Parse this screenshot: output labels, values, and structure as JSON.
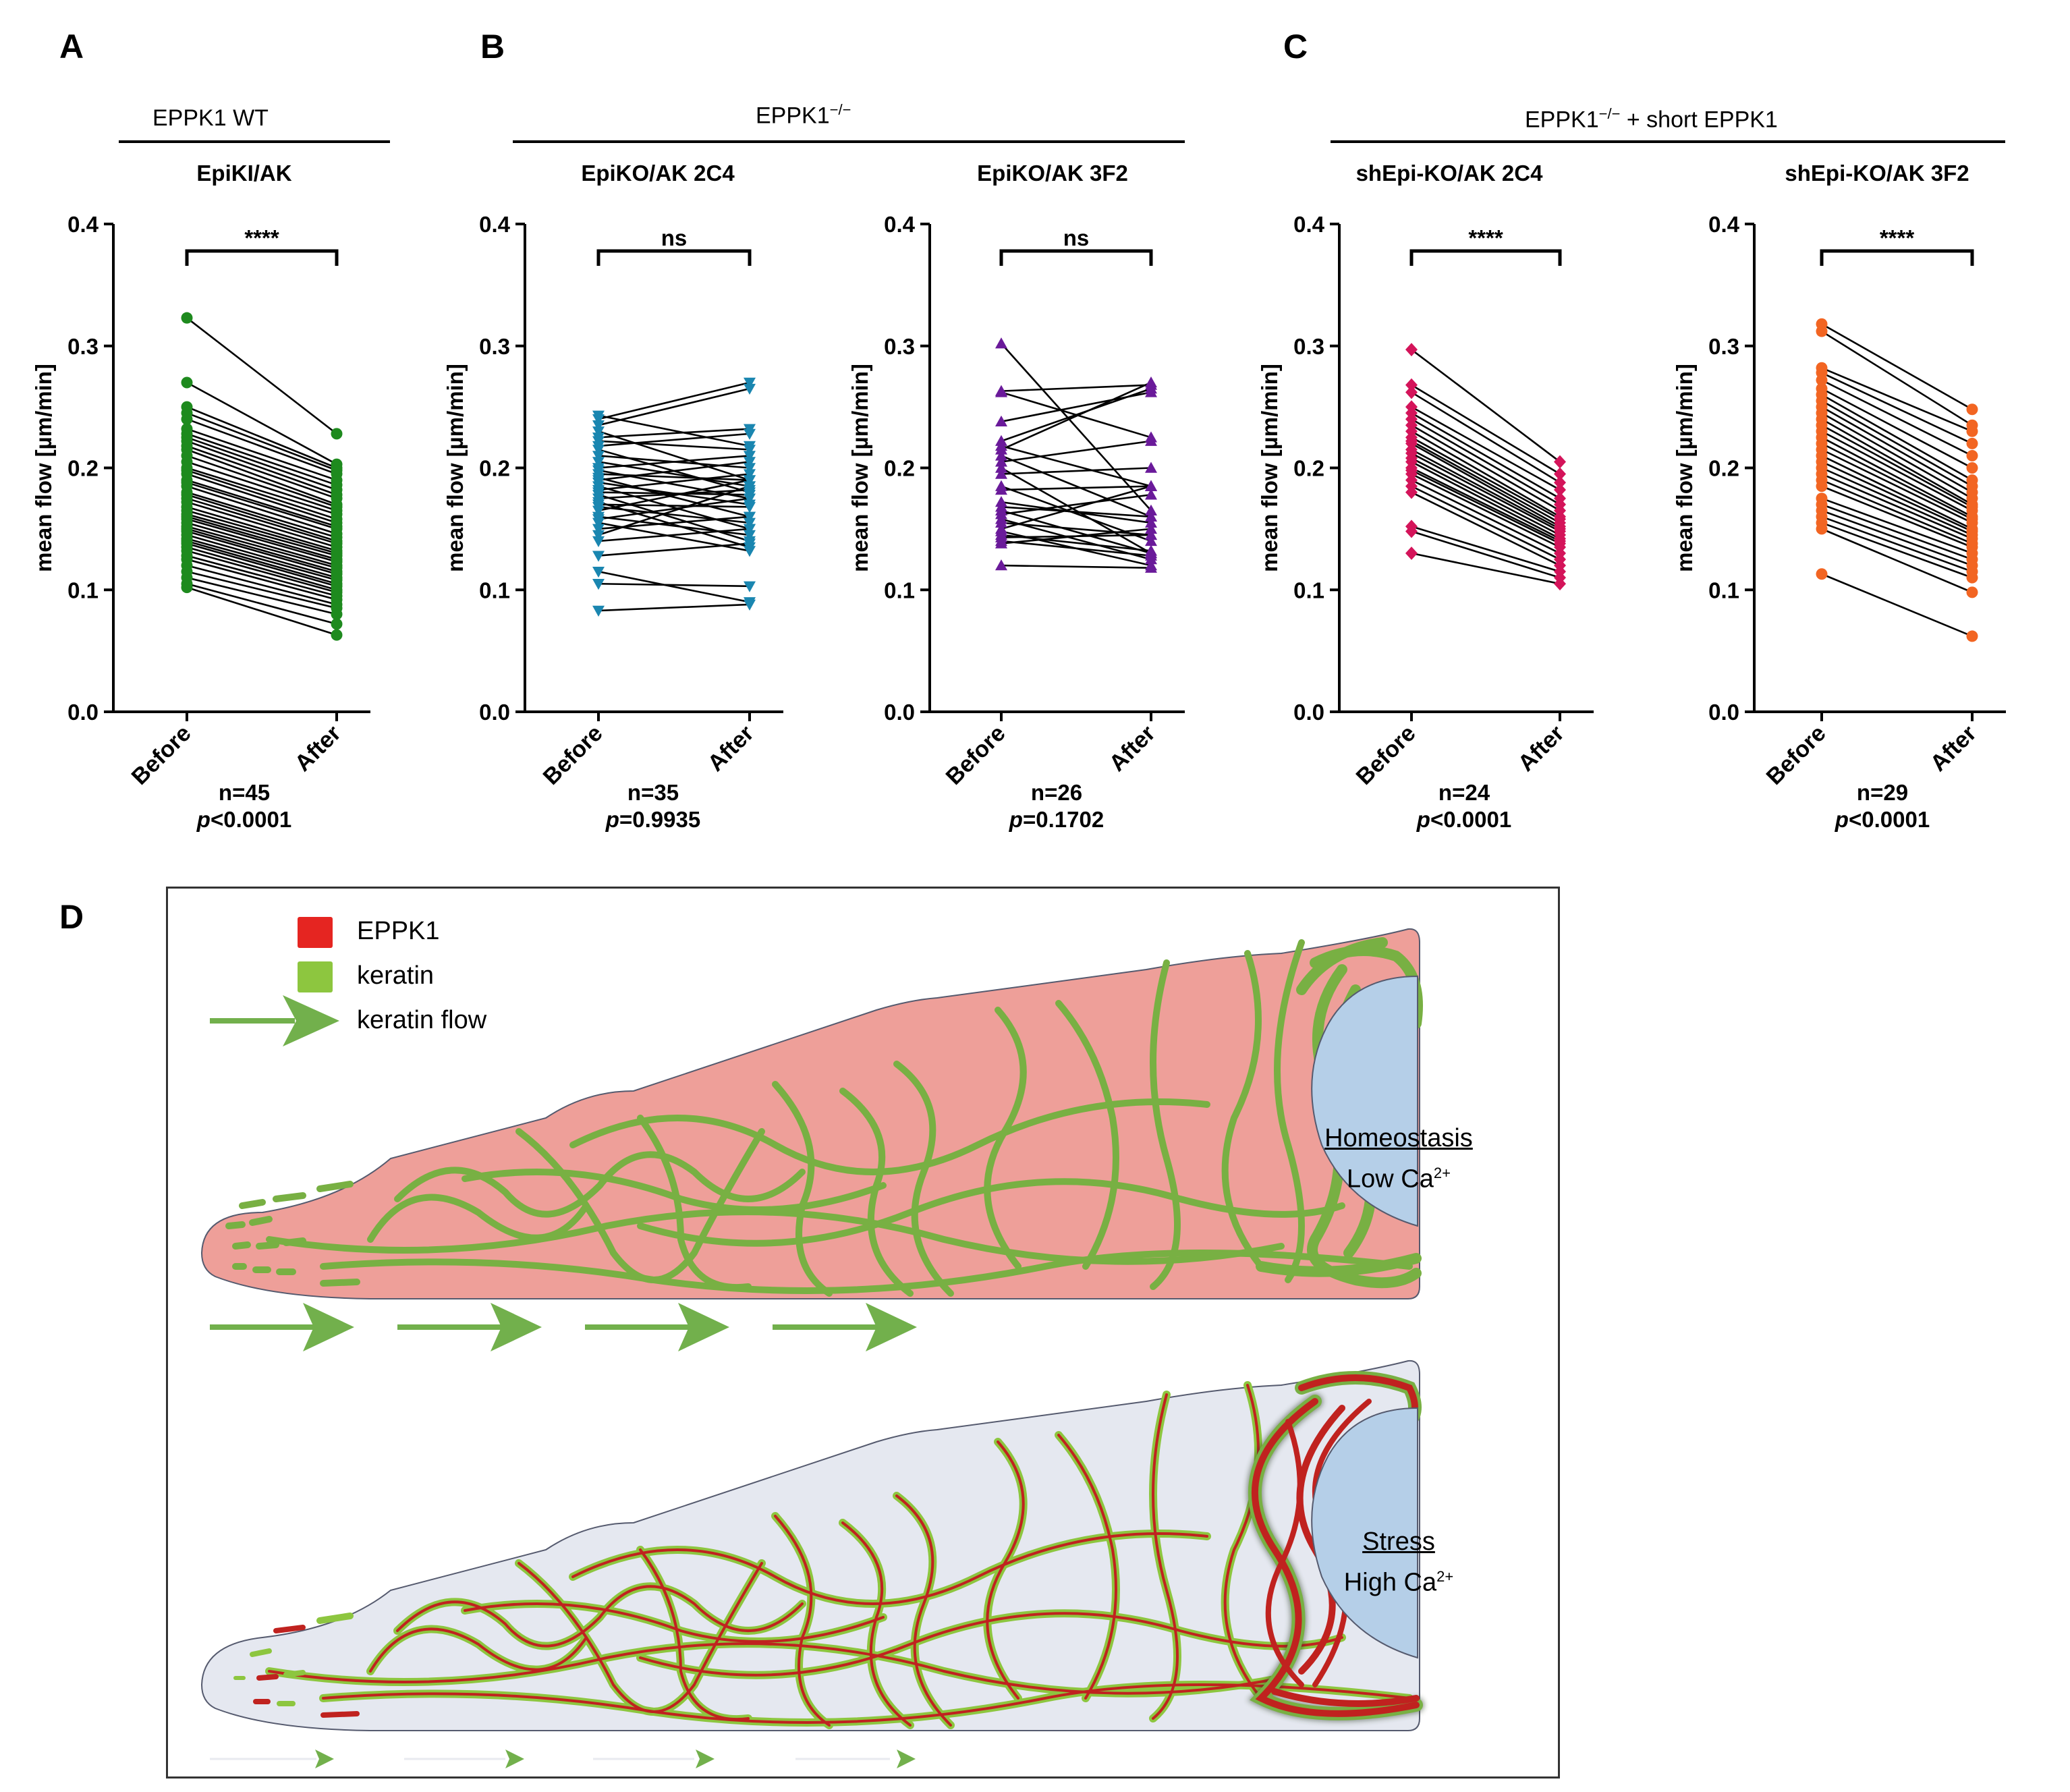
{
  "panel_letters": [
    "A",
    "B",
    "C",
    "D"
  ],
  "groups": [
    {
      "label": "EPPK1 WT"
    },
    {
      "label": "EPPK1",
      "sup": "−/−"
    },
    {
      "label": "EPPK1",
      "sup": "−/−",
      "suffix": " + short EPPK1"
    }
  ],
  "chart_data": [
    {
      "type": "line",
      "title": "EpiKI/AK",
      "ylabel": "mean flow [µm/min]",
      "categories": [
        "Before",
        "After"
      ],
      "ylim": [
        0,
        0.4
      ],
      "yticks": [
        "0.0",
        "0.1",
        "0.2",
        "0.3",
        "0.4"
      ],
      "marker": "circle",
      "color": "#1e8a1e",
      "significance": "****",
      "n_label": "n=45",
      "p_italic": "p",
      "p_value": "<0.0001",
      "pairs": [
        [
          0.323,
          0.228
        ],
        [
          0.27,
          0.203
        ],
        [
          0.25,
          0.2
        ],
        [
          0.245,
          0.198
        ],
        [
          0.24,
          0.195
        ],
        [
          0.232,
          0.19
        ],
        [
          0.228,
          0.186
        ],
        [
          0.225,
          0.182
        ],
        [
          0.222,
          0.178
        ],
        [
          0.218,
          0.175
        ],
        [
          0.215,
          0.17
        ],
        [
          0.21,
          0.168
        ],
        [
          0.205,
          0.165
        ],
        [
          0.2,
          0.162
        ],
        [
          0.198,
          0.158
        ],
        [
          0.195,
          0.155
        ],
        [
          0.19,
          0.152
        ],
        [
          0.188,
          0.15
        ],
        [
          0.185,
          0.146
        ],
        [
          0.18,
          0.143
        ],
        [
          0.178,
          0.14
        ],
        [
          0.175,
          0.138
        ],
        [
          0.172,
          0.135
        ],
        [
          0.168,
          0.132
        ],
        [
          0.165,
          0.13
        ],
        [
          0.162,
          0.128
        ],
        [
          0.16,
          0.125
        ],
        [
          0.158,
          0.123
        ],
        [
          0.155,
          0.12
        ],
        [
          0.152,
          0.118
        ],
        [
          0.15,
          0.115
        ],
        [
          0.148,
          0.113
        ],
        [
          0.145,
          0.11
        ],
        [
          0.142,
          0.108
        ],
        [
          0.14,
          0.105
        ],
        [
          0.138,
          0.103
        ],
        [
          0.135,
          0.1
        ],
        [
          0.132,
          0.098
        ],
        [
          0.128,
          0.095
        ],
        [
          0.125,
          0.092
        ],
        [
          0.12,
          0.088
        ],
        [
          0.115,
          0.085
        ],
        [
          0.11,
          0.08
        ],
        [
          0.105,
          0.072
        ],
        [
          0.102,
          0.063
        ]
      ]
    },
    {
      "type": "line",
      "title": "EpiKO/AK 2C4",
      "ylabel": "mean flow [µm/min]",
      "categories": [
        "Before",
        "After"
      ],
      "ylim": [
        0,
        0.4
      ],
      "yticks": [
        "0.0",
        "0.1",
        "0.2",
        "0.3",
        "0.4"
      ],
      "marker": "triangle-down",
      "color": "#1a86b0",
      "significance": "ns",
      "n_label": "n=35",
      "p_italic": "p",
      "p_value": "=0.9935",
      "pairs": [
        [
          0.243,
          0.218
        ],
        [
          0.24,
          0.27
        ],
        [
          0.235,
          0.265
        ],
        [
          0.23,
          0.19
        ],
        [
          0.225,
          0.232
        ],
        [
          0.222,
          0.215
        ],
        [
          0.218,
          0.228
        ],
        [
          0.215,
          0.18
        ],
        [
          0.21,
          0.2
        ],
        [
          0.205,
          0.185
        ],
        [
          0.2,
          0.21
        ],
        [
          0.198,
          0.175
        ],
        [
          0.195,
          0.19
        ],
        [
          0.192,
          0.16
        ],
        [
          0.19,
          0.205
        ],
        [
          0.188,
          0.17
        ],
        [
          0.185,
          0.15
        ],
        [
          0.182,
          0.195
        ],
        [
          0.18,
          0.178
        ],
        [
          0.178,
          0.14
        ],
        [
          0.175,
          0.182
        ],
        [
          0.172,
          0.135
        ],
        [
          0.17,
          0.168
        ],
        [
          0.168,
          0.155
        ],
        [
          0.165,
          0.19
        ],
        [
          0.16,
          0.145
        ],
        [
          0.158,
          0.175
        ],
        [
          0.155,
          0.132
        ],
        [
          0.15,
          0.16
        ],
        [
          0.145,
          0.185
        ],
        [
          0.14,
          0.15
        ],
        [
          0.128,
          0.138
        ],
        [
          0.115,
          0.09
        ],
        [
          0.105,
          0.103
        ],
        [
          0.083,
          0.088
        ]
      ]
    },
    {
      "type": "line",
      "title": "EpiKO/AK 3F2",
      "ylabel": "mean flow [µm/min]",
      "categories": [
        "Before",
        "After"
      ],
      "ylim": [
        0,
        0.4
      ],
      "yticks": [
        "0.0",
        "0.1",
        "0.2",
        "0.3",
        "0.4"
      ],
      "marker": "triangle-up",
      "color": "#6a1a9a",
      "significance": "ns",
      "n_label": "n=26",
      "p_italic": "p",
      "p_value": "=0.1702",
      "pairs": [
        [
          0.302,
          0.165
        ],
        [
          0.263,
          0.268
        ],
        [
          0.262,
          0.225
        ],
        [
          0.238,
          0.262
        ],
        [
          0.222,
          0.265
        ],
        [
          0.218,
          0.185
        ],
        [
          0.215,
          0.27
        ],
        [
          0.21,
          0.16
        ],
        [
          0.205,
          0.222
        ],
        [
          0.2,
          0.13
        ],
        [
          0.195,
          0.2
        ],
        [
          0.185,
          0.14
        ],
        [
          0.182,
          0.185
        ],
        [
          0.172,
          0.155
        ],
        [
          0.168,
          0.16
        ],
        [
          0.165,
          0.13
        ],
        [
          0.162,
          0.178
        ],
        [
          0.158,
          0.125
        ],
        [
          0.155,
          0.145
        ],
        [
          0.15,
          0.185
        ],
        [
          0.148,
          0.12
        ],
        [
          0.145,
          0.132
        ],
        [
          0.143,
          0.145
        ],
        [
          0.14,
          0.128
        ],
        [
          0.138,
          0.15
        ],
        [
          0.12,
          0.118
        ]
      ]
    },
    {
      "type": "line",
      "title": "shEpi-KO/AK 2C4",
      "ylabel": "mean flow [µm/min]",
      "categories": [
        "Before",
        "After"
      ],
      "ylim": [
        0,
        0.4
      ],
      "yticks": [
        "0.0",
        "0.1",
        "0.2",
        "0.3",
        "0.4"
      ],
      "marker": "diamond",
      "color": "#d4145a",
      "significance": "****",
      "n_label": "n=24",
      "p_italic": "p",
      "p_value": "<0.0001",
      "pairs": [
        [
          0.297,
          0.205
        ],
        [
          0.268,
          0.195
        ],
        [
          0.262,
          0.188
        ],
        [
          0.25,
          0.182
        ],
        [
          0.245,
          0.175
        ],
        [
          0.24,
          0.17
        ],
        [
          0.235,
          0.165
        ],
        [
          0.23,
          0.16
        ],
        [
          0.225,
          0.158
        ],
        [
          0.222,
          0.155
        ],
        [
          0.22,
          0.152
        ],
        [
          0.215,
          0.15
        ],
        [
          0.212,
          0.148
        ],
        [
          0.208,
          0.145
        ],
        [
          0.205,
          0.142
        ],
        [
          0.2,
          0.14
        ],
        [
          0.198,
          0.138
        ],
        [
          0.195,
          0.135
        ],
        [
          0.19,
          0.13
        ],
        [
          0.185,
          0.125
        ],
        [
          0.18,
          0.12
        ],
        [
          0.152,
          0.115
        ],
        [
          0.148,
          0.11
        ],
        [
          0.13,
          0.105
        ]
      ]
    },
    {
      "type": "line",
      "title": "shEpi-KO/AK 3F2",
      "ylabel": "mean flow [µm/min]",
      "categories": [
        "Before",
        "After"
      ],
      "ylim": [
        0,
        0.4
      ],
      "yticks": [
        "0.0",
        "0.1",
        "0.2",
        "0.3",
        "0.4"
      ],
      "marker": "circle",
      "color": "#f26522",
      "significance": "****",
      "n_label": "n=29",
      "p_italic": "p",
      "p_value": "<0.0001",
      "pairs": [
        [
          0.318,
          0.248
        ],
        [
          0.312,
          0.235
        ],
        [
          0.282,
          0.23
        ],
        [
          0.278,
          0.22
        ],
        [
          0.272,
          0.21
        ],
        [
          0.265,
          0.2
        ],
        [
          0.26,
          0.19
        ],
        [
          0.255,
          0.185
        ],
        [
          0.25,
          0.18
        ],
        [
          0.245,
          0.175
        ],
        [
          0.24,
          0.17
        ],
        [
          0.235,
          0.168
        ],
        [
          0.23,
          0.165
        ],
        [
          0.225,
          0.16
        ],
        [
          0.22,
          0.158
        ],
        [
          0.215,
          0.155
        ],
        [
          0.21,
          0.15
        ],
        [
          0.205,
          0.148
        ],
        [
          0.2,
          0.145
        ],
        [
          0.195,
          0.142
        ],
        [
          0.19,
          0.138
        ],
        [
          0.185,
          0.135
        ],
        [
          0.175,
          0.13
        ],
        [
          0.17,
          0.125
        ],
        [
          0.165,
          0.12
        ],
        [
          0.16,
          0.115
        ],
        [
          0.155,
          0.11
        ],
        [
          0.15,
          0.098
        ],
        [
          0.113,
          0.062
        ]
      ]
    }
  ],
  "diagram": {
    "legend": [
      {
        "label": "EPPK1",
        "color": "#e52521"
      },
      {
        "label": "keratin",
        "color": "#8dc63f"
      },
      {
        "label": "keratin flow",
        "color": "#72b04c"
      }
    ],
    "conditions": [
      {
        "title": "Homeostasis",
        "subtitle": "Low Ca",
        "sup": "2+",
        "cell_color": "#ee9f99"
      },
      {
        "title": "Stress",
        "subtitle": "High Ca",
        "sup": "2+",
        "cell_color": "#e5e8f0"
      }
    ],
    "nucleus_color": "#b5cfe8",
    "keratin_color": "#78b043",
    "eppk1_color": "#c0221f"
  }
}
